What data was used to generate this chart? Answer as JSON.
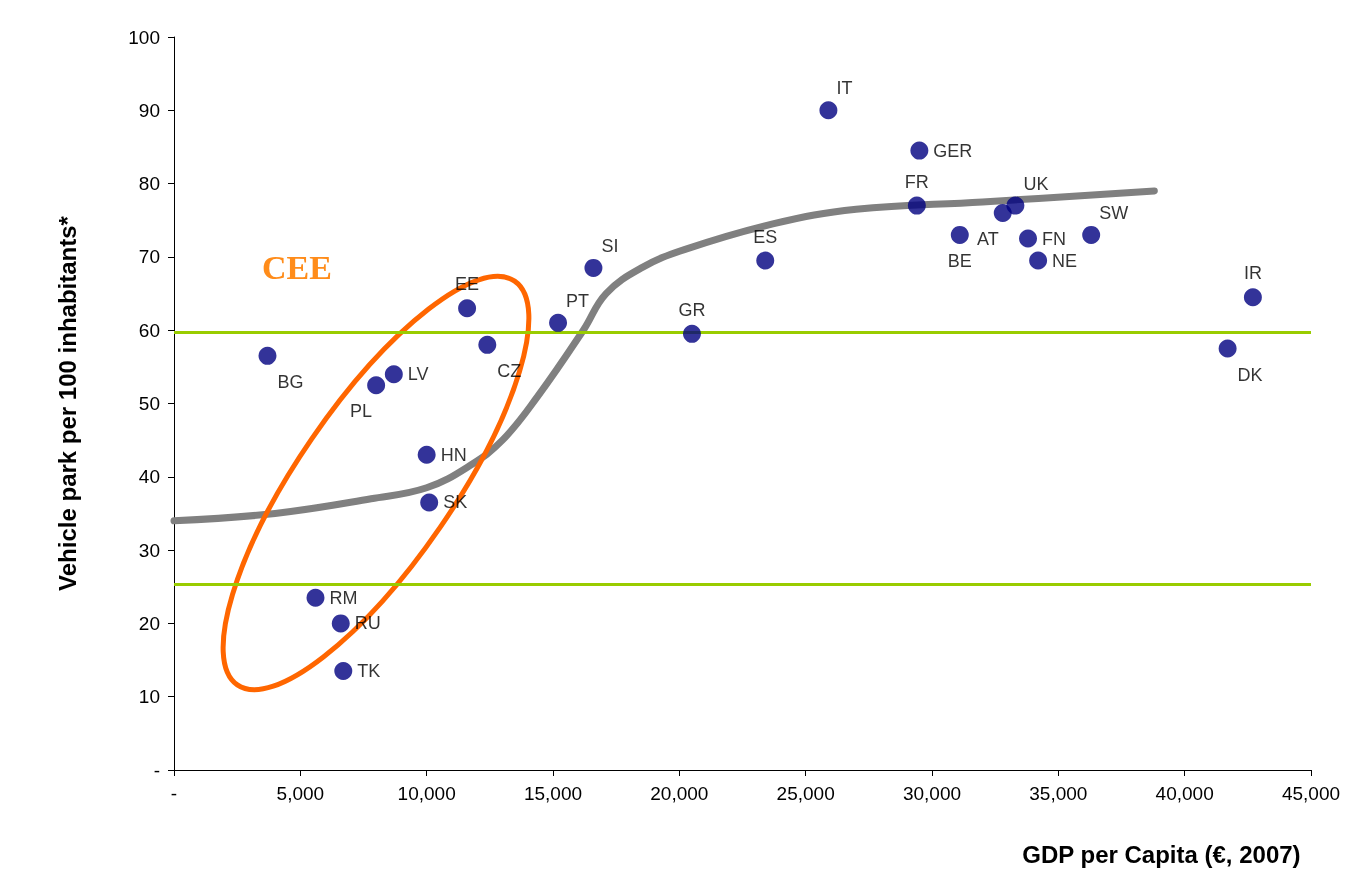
{
  "chart_data": {
    "type": "scatter",
    "xlabel": "GDP per Capita (€, 2007)",
    "ylabel": "Vehicle park per 100 inhabitants*",
    "series": [
      {
        "type": "scatter",
        "color": "#000080",
        "marker": "circle",
        "x": [
          3700,
          11600,
          12400,
          15200,
          8700,
          8000,
          10000,
          10100,
          5600,
          6600,
          6700,
          16600,
          20500,
          23400,
          25900,
          29500,
          29400,
          31100,
          32800,
          33300,
          33800,
          34200,
          36300,
          42700,
          41700
        ],
        "values": [
          56.5,
          63,
          58,
          61,
          54,
          52.5,
          43,
          36.5,
          23.5,
          20,
          13.5,
          68.5,
          59.5,
          69.5,
          90,
          84.5,
          77,
          73,
          76,
          77,
          72.5,
          69.5,
          73,
          64.5,
          57.5
        ]
      },
      {
        "type": "line",
        "color": "#808080",
        "marker": "none",
        "line_style": "solid",
        "x": [
          0,
          4000,
          7800,
          10000,
          11700,
          13000,
          14400,
          16200,
          17100,
          18500,
          20200,
          23700,
          27000,
          32000,
          38800
        ],
        "values": [
          34,
          35,
          37,
          38.5,
          41.5,
          45,
          51,
          60,
          65,
          68.5,
          71,
          74.5,
          76.5,
          77.5,
          79
        ]
      }
    ],
    "annotations": [
      {
        "text": "BG",
        "x": 3700,
        "y": 56.5
      },
      {
        "text": "EE",
        "x": 11600,
        "y": 63
      },
      {
        "text": "CZ",
        "x": 12400,
        "y": 58
      },
      {
        "text": "PT",
        "x": 15200,
        "y": 61
      },
      {
        "text": "LV",
        "x": 8700,
        "y": 54
      },
      {
        "text": "PL",
        "x": 8000,
        "y": 52.5
      },
      {
        "text": "HN",
        "x": 10000,
        "y": 43
      },
      {
        "text": "SK",
        "x": 10100,
        "y": 36.5
      },
      {
        "text": "RM",
        "x": 5600,
        "y": 23.5
      },
      {
        "text": "RU",
        "x": 6600,
        "y": 20
      },
      {
        "text": "TK",
        "x": 6700,
        "y": 13.5
      },
      {
        "text": "SI",
        "x": 16600,
        "y": 68.5
      },
      {
        "text": "GR",
        "x": 20500,
        "y": 59.5
      },
      {
        "text": "ES",
        "x": 23400,
        "y": 69.5
      },
      {
        "text": "IT",
        "x": 25900,
        "y": 90
      },
      {
        "text": "GER",
        "x": 29500,
        "y": 84.5
      },
      {
        "text": "FR",
        "x": 29400,
        "y": 77
      },
      {
        "text": "BE",
        "x": 31100,
        "y": 73
      },
      {
        "text": "AT",
        "x": 32800,
        "y": 76
      },
      {
        "text": "UK",
        "x": 33300,
        "y": 77
      },
      {
        "text": "FN",
        "x": 33800,
        "y": 72.5
      },
      {
        "text": "NE",
        "x": 34200,
        "y": 69.5
      },
      {
        "text": "SW",
        "x": 36300,
        "y": 73
      },
      {
        "text": "IR",
        "x": 42700,
        "y": 64.5
      },
      {
        "text": "DK",
        "x": 41700,
        "y": 57.5
      },
      "CEE"
    ],
    "ref_lines": [
      {
        "axis": "y",
        "value": 59.7,
        "label": null,
        "color": "#99cc00"
      },
      {
        "axis": "y",
        "value": 25.3,
        "label": null,
        "color": "#99cc00"
      }
    ],
    "xlim": [
      0,
      45000
    ],
    "xticks": [
      {
        "value": 0,
        "label": "-"
      },
      {
        "value": 5000,
        "label": "5,000"
      },
      {
        "value": 10000,
        "label": "10,000"
      },
      {
        "value": 15000,
        "label": "15,000"
      },
      {
        "value": 20000,
        "label": "20,000"
      },
      {
        "value": 25000,
        "label": "25,000"
      },
      {
        "value": 30000,
        "label": "30,000"
      },
      {
        "value": 35000,
        "label": "35,000"
      },
      {
        "value": 40000,
        "label": "40,000"
      },
      {
        "value": 45000,
        "label": "45,000"
      }
    ],
    "ylim": [
      0,
      100
    ],
    "yticks": [
      {
        "value": 0,
        "label": "-"
      },
      10,
      20,
      30,
      40,
      50,
      60,
      70,
      80,
      90,
      100
    ],
    "grid": false,
    "legend": false
  }
}
